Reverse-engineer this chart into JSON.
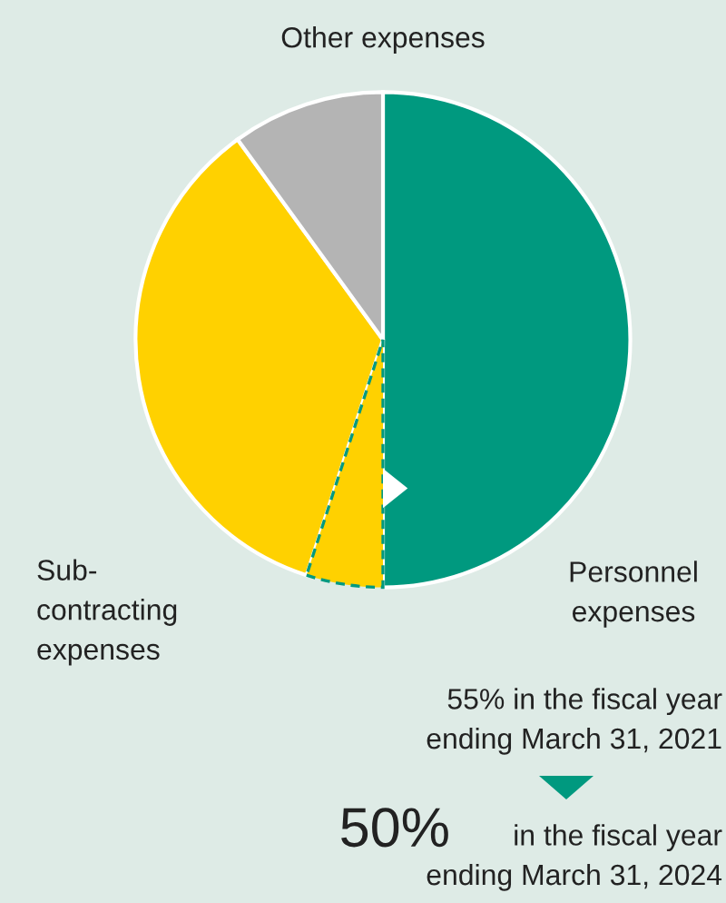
{
  "chart_data": {
    "type": "pie",
    "categories": [
      "Personnel\nexpenses",
      null,
      "Sub-\ncontracting\nexpenses",
      "Other expenses"
    ],
    "values": [
      50,
      5,
      35,
      10
    ],
    "colors": [
      "#00997f",
      "#ffd100",
      "#ffd100",
      "#b4b4b4"
    ],
    "annotations": [
      "55% in the fiscal year\nending March 31, 2021",
      "50%",
      "in the fiscal year\nending March 31, 2024"
    ]
  }
}
